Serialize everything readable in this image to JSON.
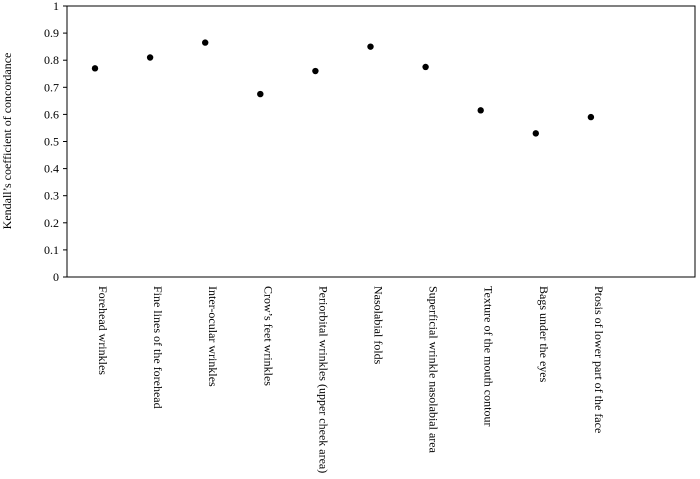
{
  "chart_data": {
    "type": "scatter",
    "title": "",
    "xlabel": "",
    "ylabel": "Kendall’s coefficient of concordance",
    "ylim": [
      0,
      1
    ],
    "yticks": [
      "0",
      "0.1",
      "0.2",
      "0.3",
      "0.4",
      "0.5",
      "0.6",
      "0.7",
      "0.8",
      "0.9",
      "1"
    ],
    "grid": false,
    "legend": "none",
    "categories": [
      "Forehead wrinkles",
      "Fine lines of the forehead",
      "Inter-ocular wrinkles",
      "Crow’s feet wrinkles",
      "Periorbital wrinkles (upper cheek area)",
      "Nasolabial folds",
      "Superficial wrinkle nasolabial area",
      "Texture of the mouth contour",
      "Bags under the eyes",
      "Ptosis of lower part of the face"
    ],
    "values": [
      0.77,
      0.81,
      0.865,
      0.675,
      0.76,
      0.85,
      0.775,
      0.615,
      0.53,
      0.59
    ],
    "marker_color": "#000000"
  }
}
